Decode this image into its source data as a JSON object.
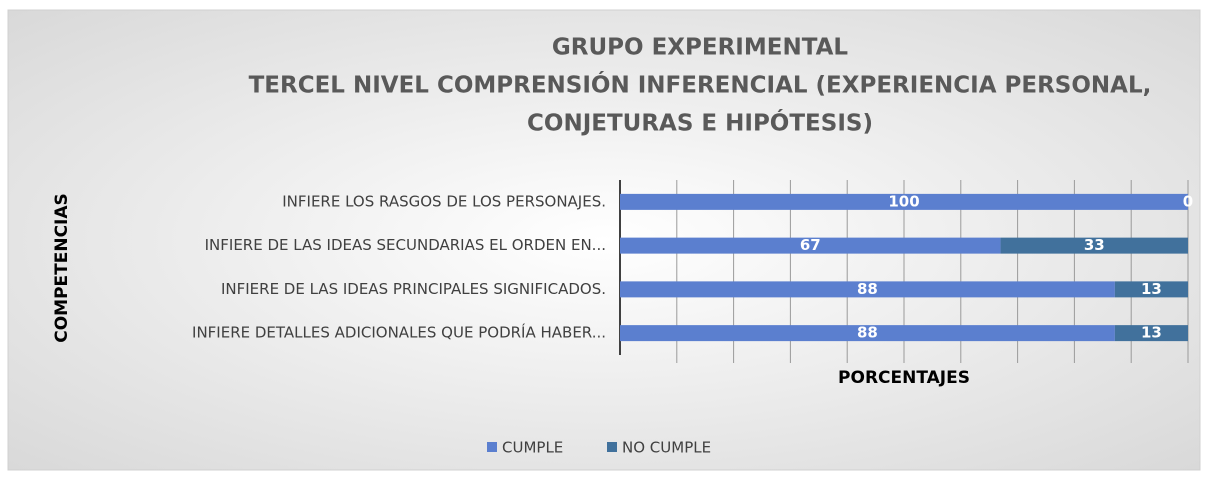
{
  "chart_data": {
    "type": "bar",
    "orientation": "horizontal",
    "stack": "percent",
    "title": [
      "GRUPO EXPERIMENTAL",
      "TERCEL  NIVEL COMPRENSIÓN INFERENCIAL (EXPERIENCIA PERSONAL,",
      "CONJETURAS E HIPÓTESIS)"
    ],
    "y_label": "COMPETENCIAS",
    "x_label": "PORCENTAJES",
    "categories": [
      "INFIERE LOS RASGOS DE LOS PERSONAJES.",
      "INFIERE DE LAS IDEAS SECUNDARIAS  EL ORDEN EN...",
      "INFIERE DE LAS IDEAS PRINCIPALES SIGNIFICADOS.",
      "INFIERE DETALLES ADICIONALES QUE PODRÍA HABER..."
    ],
    "series": [
      {
        "name": "CUMPLE",
        "color": "#5b7fcf",
        "values": [
          100,
          67,
          88,
          88
        ]
      },
      {
        "name": "NO CUMPLE",
        "color": "#41719c",
        "values": [
          0,
          33,
          13,
          13
        ]
      }
    ],
    "grid": true,
    "legend": "bottom"
  }
}
